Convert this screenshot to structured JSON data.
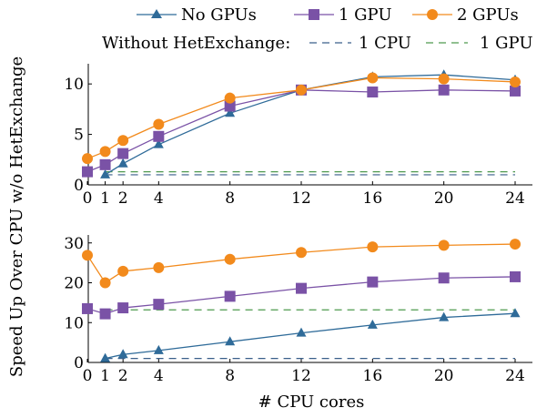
{
  "colors": {
    "no_gpus": "#2f6b99",
    "one_gpu": "#7a52a6",
    "two_gpus": "#f28a1c",
    "baseline_1cpu": "#3a5f8a",
    "baseline_1gpu": "#4f9a4f"
  },
  "legend": {
    "row1": [
      {
        "label": "No GPUs",
        "marker": "triangle",
        "color_key": "no_gpus"
      },
      {
        "label": "1 GPU",
        "marker": "square",
        "color_key": "one_gpu"
      },
      {
        "label": "2 GPUs",
        "marker": "circle",
        "color_key": "two_gpus"
      }
    ],
    "row2_prefix": "Without HetExchange:",
    "row2": [
      {
        "label": "1 CPU",
        "style": "dashed",
        "color_key": "baseline_1cpu"
      },
      {
        "label": "1 GPU",
        "style": "dashed",
        "color_key": "baseline_1gpu"
      }
    ]
  },
  "shared_ylabel": "Speed Up Over CPU w/o HetExchange",
  "shared_xlabel": "# CPU cores",
  "chart_data": [
    {
      "type": "line",
      "x": [
        0,
        1,
        2,
        4,
        8,
        12,
        16,
        20,
        24
      ],
      "x_ticks": [
        0,
        1,
        2,
        4,
        8,
        12,
        16,
        20,
        24
      ],
      "xlim": [
        0,
        24
      ],
      "ylim": [
        0,
        12
      ],
      "y_ticks": [
        0,
        5,
        10
      ],
      "grid": false,
      "series": [
        {
          "name": "No GPUs",
          "marker": "triangle",
          "color_key": "no_gpus",
          "points": [
            [
              1,
              1.0
            ],
            [
              2,
              2.1
            ],
            [
              4,
              4.0
            ],
            [
              8,
              7.1
            ],
            [
              12,
              9.4
            ],
            [
              16,
              10.7
            ],
            [
              20,
              10.9
            ],
            [
              24,
              10.4
            ]
          ]
        },
        {
          "name": "1 GPU",
          "marker": "square",
          "color_key": "one_gpu",
          "points": [
            [
              0,
              1.3
            ],
            [
              1,
              2.0
            ],
            [
              2,
              3.1
            ],
            [
              4,
              4.8
            ],
            [
              8,
              7.8
            ],
            [
              12,
              9.4
            ],
            [
              16,
              9.2
            ],
            [
              20,
              9.4
            ],
            [
              24,
              9.3
            ]
          ]
        },
        {
          "name": "2 GPUs",
          "marker": "circle",
          "color_key": "two_gpus",
          "points": [
            [
              0,
              2.6
            ],
            [
              1,
              3.3
            ],
            [
              2,
              4.4
            ],
            [
              4,
              6.0
            ],
            [
              8,
              8.6
            ],
            [
              12,
              9.4
            ],
            [
              16,
              10.6
            ],
            [
              20,
              10.5
            ],
            [
              24,
              10.2
            ]
          ]
        }
      ],
      "baselines": [
        {
          "name": "1 CPU",
          "value": 1.0,
          "color_key": "baseline_1cpu",
          "x_range": [
            1,
            24
          ]
        },
        {
          "name": "1 GPU",
          "value": 1.3,
          "color_key": "baseline_1gpu",
          "x_range": [
            1,
            24
          ]
        }
      ]
    },
    {
      "type": "line",
      "x": [
        0,
        1,
        2,
        4,
        8,
        12,
        16,
        20,
        24
      ],
      "x_ticks": [
        0,
        1,
        2,
        4,
        8,
        12,
        16,
        20,
        24
      ],
      "xlim": [
        0,
        24
      ],
      "ylim": [
        0,
        32
      ],
      "y_ticks": [
        0,
        10,
        20,
        30
      ],
      "grid": false,
      "series": [
        {
          "name": "No GPUs",
          "marker": "triangle",
          "color_key": "no_gpus",
          "points": [
            [
              1,
              1.0
            ],
            [
              2,
              2.0
            ],
            [
              4,
              3.0
            ],
            [
              8,
              5.2
            ],
            [
              12,
              7.4
            ],
            [
              16,
              9.4
            ],
            [
              20,
              11.3
            ],
            [
              24,
              12.3
            ]
          ]
        },
        {
          "name": "1 GPU",
          "marker": "square",
          "color_key": "one_gpu",
          "points": [
            [
              0,
              13.5
            ],
            [
              1,
              12.2
            ],
            [
              2,
              13.7
            ],
            [
              4,
              14.6
            ],
            [
              8,
              16.6
            ],
            [
              12,
              18.6
            ],
            [
              16,
              20.2
            ],
            [
              20,
              21.2
            ],
            [
              24,
              21.5
            ]
          ]
        },
        {
          "name": "2 GPUs",
          "marker": "circle",
          "color_key": "two_gpus",
          "points": [
            [
              0,
              26.9
            ],
            [
              1,
              20.0
            ],
            [
              2,
              22.9
            ],
            [
              4,
              23.8
            ],
            [
              8,
              25.9
            ],
            [
              12,
              27.6
            ],
            [
              16,
              29.0
            ],
            [
              20,
              29.4
            ],
            [
              24,
              29.7
            ]
          ]
        }
      ],
      "baselines": [
        {
          "name": "1 CPU",
          "value": 1.0,
          "color_key": "baseline_1cpu",
          "x_range": [
            1,
            24
          ]
        },
        {
          "name": "1 GPU",
          "value": 13.2,
          "color_key": "baseline_1gpu",
          "x_range": [
            1,
            24
          ]
        }
      ]
    }
  ]
}
